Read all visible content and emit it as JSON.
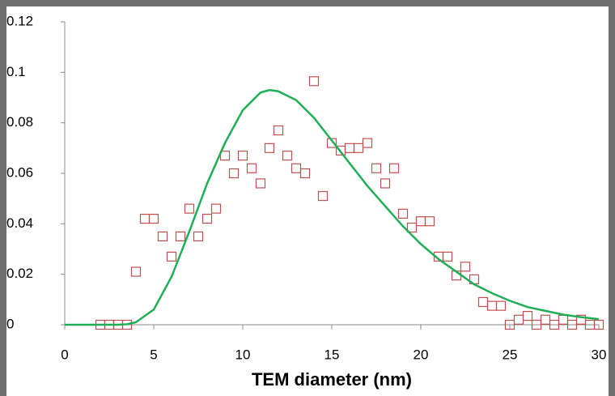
{
  "chart_data": {
    "type": "scatter",
    "x_label": "TEM diameter (nm)",
    "xlim": [
      0,
      30
    ],
    "xticks": [
      0,
      5,
      10,
      15,
      20,
      25,
      30
    ],
    "ylim": [
      0,
      0.12
    ],
    "yticks": [
      0,
      0.02,
      0.04,
      0.06,
      0.08,
      0.1,
      0.12
    ],
    "series": [
      {
        "type": "scatter",
        "color": "#c0504d",
        "x": [
          2,
          2.5,
          3,
          3.5,
          4,
          4.5,
          5,
          5.5,
          6,
          6.5,
          7,
          7.5,
          8,
          8.5,
          9,
          9.5,
          10,
          10.5,
          11,
          11.5,
          12,
          12.5,
          13,
          13.5,
          14,
          14.5,
          15,
          15.5,
          16,
          16.5,
          17,
          17.5,
          18,
          18.5,
          19,
          19.5,
          20,
          20.5,
          21,
          21.5,
          22,
          22.5,
          23,
          23.5,
          24,
          24.5,
          25,
          25.5,
          26,
          26.5,
          27,
          27.5,
          28,
          28.5,
          29,
          29.5,
          30
        ],
        "values": [
          0,
          0,
          0,
          0,
          0.021,
          0.042,
          0.042,
          0.035,
          0.027,
          0.035,
          0.046,
          0.035,
          0.042,
          0.046,
          0.067,
          0.06,
          0.067,
          0.062,
          0.056,
          0.07,
          0.077,
          0.067,
          0.062,
          0.06,
          0.0965,
          0.051,
          0.072,
          0.069,
          0.07,
          0.07,
          0.072,
          0.062,
          0.056,
          0.062,
          0.044,
          0.0385,
          0.041,
          0.041,
          0.027,
          0.027,
          0.0195,
          0.023,
          0.018,
          0.009,
          0.0075,
          0.0075,
          0,
          0.002,
          0.0035,
          0,
          0.002,
          0,
          0.002,
          0,
          0.002,
          0,
          0
        ]
      },
      {
        "type": "line",
        "color": "#1fae57",
        "x": [
          0,
          1,
          2,
          3,
          3.5,
          4,
          5,
          6,
          7,
          8,
          9,
          10,
          11,
          11.5,
          12,
          13,
          14,
          15,
          16,
          17,
          18,
          19,
          20,
          21,
          22,
          23,
          24,
          25,
          26,
          27,
          28,
          29,
          30
        ],
        "values": [
          0,
          0,
          0,
          0,
          0.0002,
          0.001,
          0.006,
          0.019,
          0.037,
          0.056,
          0.072,
          0.085,
          0.092,
          0.093,
          0.0925,
          0.089,
          0.082,
          0.073,
          0.064,
          0.055,
          0.047,
          0.039,
          0.032,
          0.026,
          0.021,
          0.016,
          0.0125,
          0.0095,
          0.007,
          0.0055,
          0.004,
          0.003,
          0.0022
        ]
      }
    ]
  }
}
